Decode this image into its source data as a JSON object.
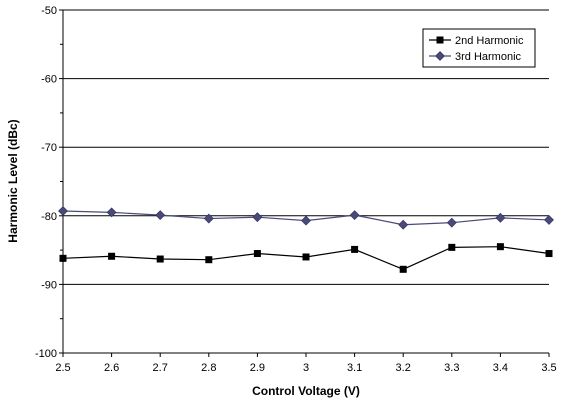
{
  "chart_data": {
    "type": "line",
    "xlabel": "Control Voltage (V)",
    "ylabel": "Harmonic Level (dBc)",
    "x": [
      2.5,
      2.6,
      2.7,
      2.8,
      2.9,
      3.0,
      3.1,
      3.2,
      3.3,
      3.4,
      3.5
    ],
    "x_tick_labels": [
      "2.5",
      "2.6",
      "2.7",
      "2.8",
      "2.9",
      "3",
      "3.1",
      "3.2",
      "3.3",
      "3.4",
      "3.5"
    ],
    "xlim": [
      2.5,
      3.5
    ],
    "ylim": [
      -100,
      -50
    ],
    "y_ticks": [
      -100,
      -90,
      -80,
      -70,
      -60,
      -50
    ],
    "grid": "horizontal major",
    "legend_position": "top-right",
    "series": [
      {
        "name": "2nd Harmonic",
        "marker": "square",
        "color": "#000000",
        "values": [
          -86.2,
          -85.9,
          -86.3,
          -86.4,
          -85.5,
          -86.0,
          -84.9,
          -87.8,
          -84.6,
          -84.5,
          -85.5
        ]
      },
      {
        "name": "3rd Harmonic",
        "marker": "diamond",
        "color": "#4a4a7a",
        "values": [
          -79.3,
          -79.5,
          -79.9,
          -80.4,
          -80.2,
          -80.7,
          -79.9,
          -81.3,
          -81.0,
          -80.3,
          -80.6
        ]
      }
    ]
  }
}
